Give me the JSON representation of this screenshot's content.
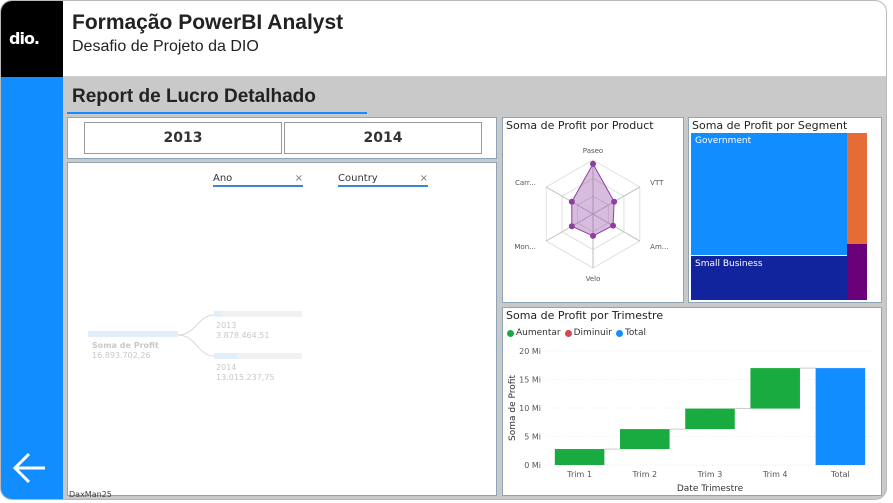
{
  "header": {
    "logo_text": "dio.",
    "title": "Formação PowerBI Analyst",
    "subtitle": "Desafio de Projeto da DIO"
  },
  "report": {
    "title": "Report de Lucro Detalhado"
  },
  "slicer": {
    "years": [
      "2013",
      "2014"
    ]
  },
  "decomposition": {
    "filters": [
      {
        "label": "Ano",
        "clear": "×"
      },
      {
        "label": "Country",
        "clear": "×"
      }
    ],
    "root": {
      "label": "Soma de Profit",
      "value": "16.893.702,26"
    },
    "nodes": [
      {
        "label": "2013",
        "value": "3.878.464,51"
      },
      {
        "label": "2014",
        "value": "13.015.237,75"
      }
    ],
    "footer": "DaxMan25"
  },
  "radar": {
    "title": "Soma de Profit por Product",
    "axes": [
      "Paseo",
      "VTT",
      "Am...",
      "Velo",
      "Mon...",
      "Carr..."
    ],
    "values": [
      3.9,
      1.9,
      1.8,
      1.7,
      1.9,
      1.9
    ],
    "max": 4.2,
    "color": "#8e3e9e"
  },
  "treemap": {
    "title": "Soma de Profit por Segment",
    "segments": [
      {
        "label": "Government",
        "value": 11.39,
        "color": "#118dff"
      },
      {
        "label": "Small Business",
        "value": 4.14,
        "color": "#12239e"
      },
      {
        "label": "",
        "value": 1.38,
        "color": "#e66c37"
      },
      {
        "label": "",
        "value": 0.7,
        "color": "#6b007b"
      }
    ]
  },
  "chart_data": {
    "type": "bar",
    "title": "Soma de Profit por Trimestre",
    "legend": [
      "Aumentar",
      "Diminuir",
      "Total"
    ],
    "legend_colors": [
      "#1aab40",
      "#d64550",
      "#118dff"
    ],
    "categories": [
      "Trim 1",
      "Trim 2",
      "Trim 3",
      "Trim 4",
      "Total"
    ],
    "steps": [
      2.8,
      3.5,
      3.6,
      7.1
    ],
    "total": 17.0,
    "xlabel": "Date Trimestre",
    "ylabel": "Soma de Profit",
    "yticks": [
      "0 Mi",
      "5 Mi",
      "10 Mi",
      "15 Mi",
      "20 Mi"
    ],
    "ylim": [
      0,
      20
    ]
  }
}
